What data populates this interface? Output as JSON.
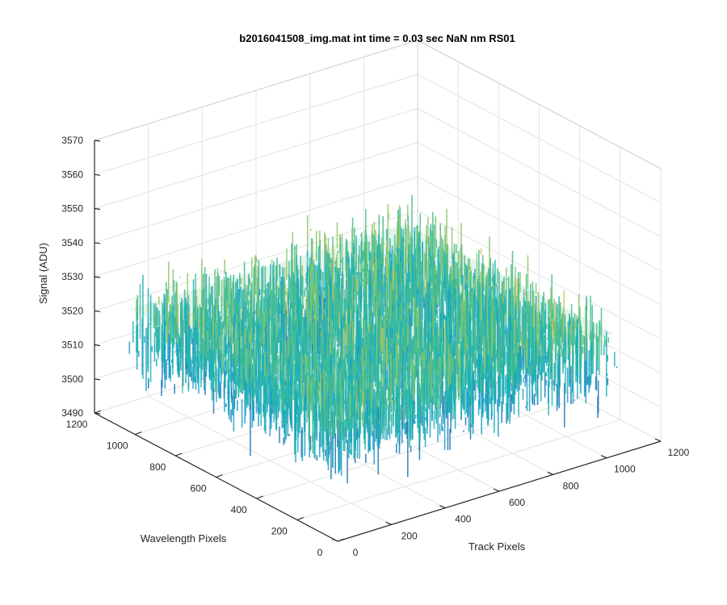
{
  "chart_data": {
    "type": "surface3d",
    "title": "b2016041508_img.mat int time = 0.03 sec  NaN nm RS01",
    "xlabel": "Track Pixels",
    "ylabel": "Wavelength Pixels",
    "zlabel": "Signal (ADU)",
    "xlim": [
      0,
      1200
    ],
    "ylim": [
      0,
      1200
    ],
    "zlim": [
      3490,
      3570
    ],
    "xticks": [
      "0",
      "200",
      "400",
      "600",
      "800",
      "1000",
      "1200"
    ],
    "yticks": [
      "0",
      "200",
      "400",
      "600",
      "800",
      "1000",
      "1200"
    ],
    "zticks": [
      "3490",
      "3500",
      "3510",
      "3520",
      "3530",
      "3540",
      "3550",
      "3560",
      "3570"
    ],
    "data_extent": {
      "x": [
        0,
        1024
      ],
      "y": [
        0,
        1024
      ]
    },
    "signal_mean": 3520,
    "signal_range": [
      3495,
      3560
    ],
    "grid": true,
    "colormap": [
      "#1f77b4",
      "#1b9fc4",
      "#20b3b0",
      "#49bd8c",
      "#8ec66a",
      "#c9c85a"
    ]
  }
}
